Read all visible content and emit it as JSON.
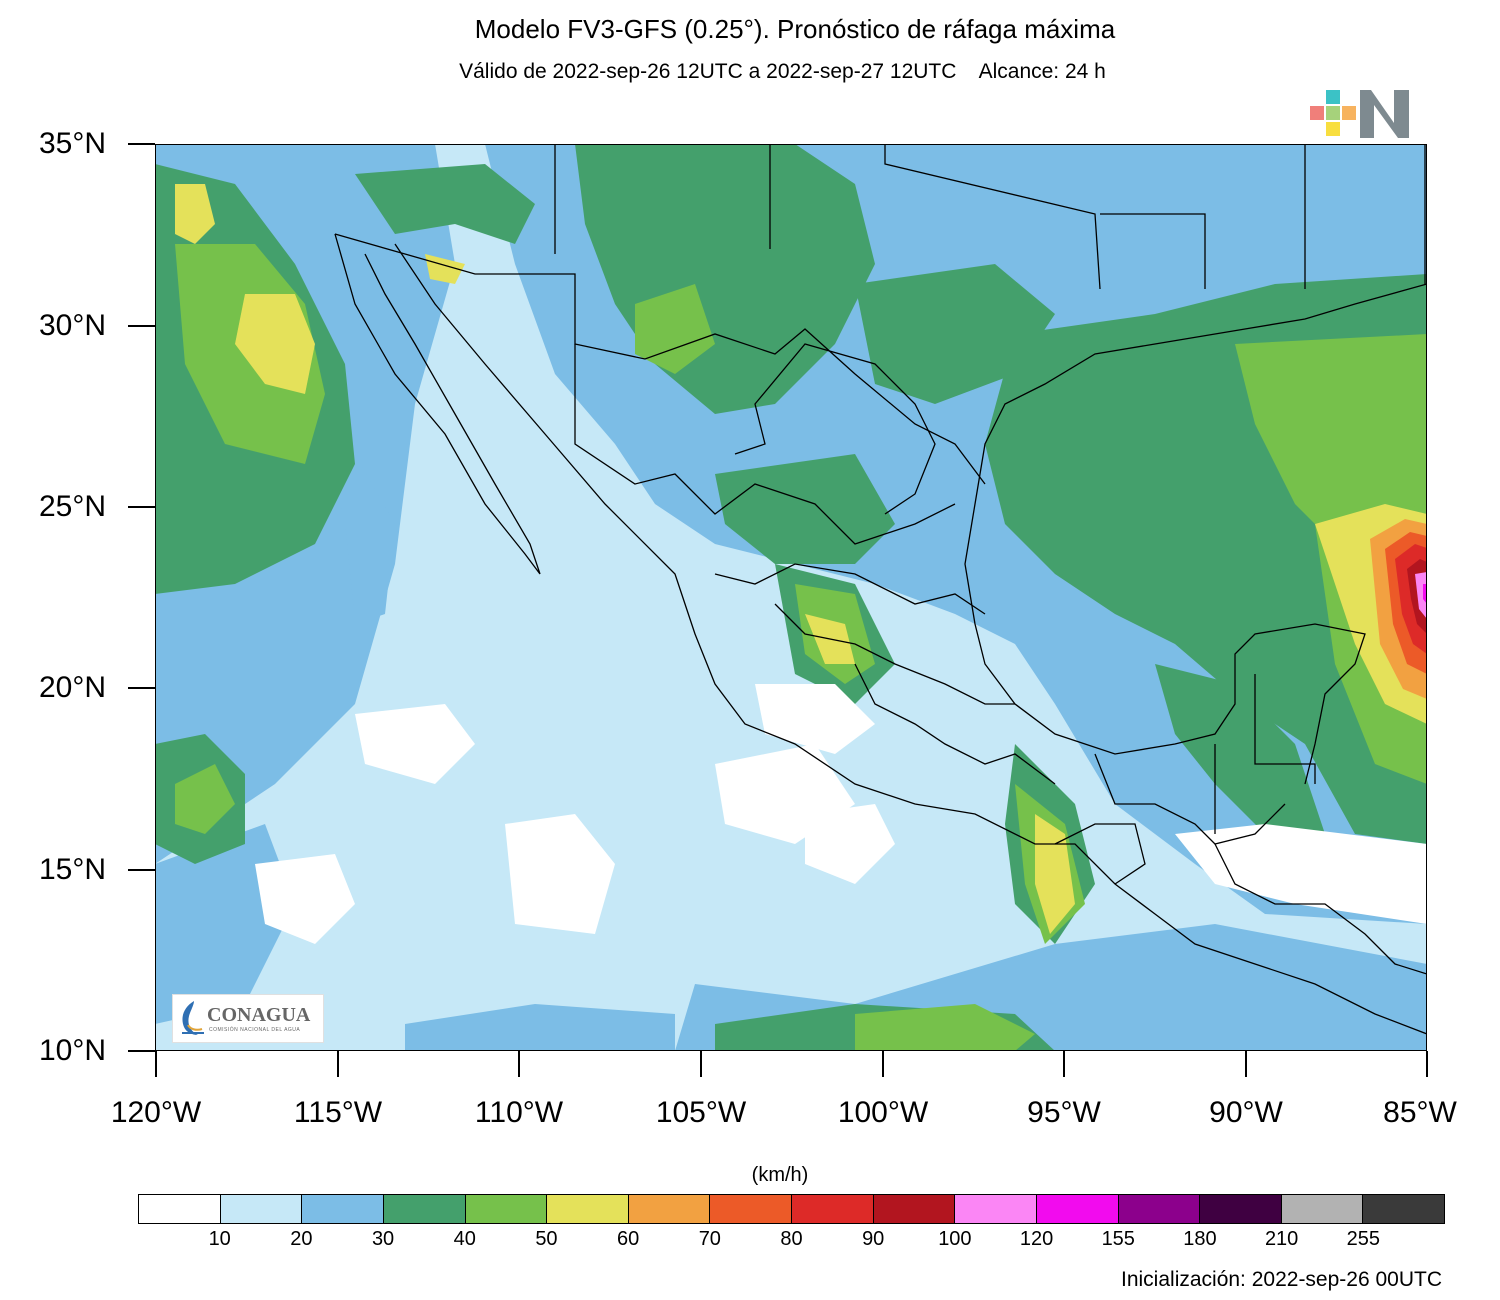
{
  "title": "Modelo FV3-GFS (0.25°). Pronóstico de ráfaga máxima",
  "subtitle": "Válido de 2022-sep-26 12UTC a 2022-sep-27 12UTC    Alcance: 24 h",
  "lat_labels": [
    "35°N",
    "30°N",
    "25°N",
    "20°N",
    "15°N",
    "10°N"
  ],
  "lon_labels": [
    "120°W",
    "115°W",
    "110°W",
    "105°W",
    "100°W",
    "95°W",
    "90°W",
    "85°W"
  ],
  "colorbar": {
    "unit": "(km/h)",
    "labels": [
      "10",
      "20",
      "30",
      "40",
      "50",
      "60",
      "70",
      "80",
      "90",
      "100",
      "120",
      "155",
      "180",
      "210",
      "255"
    ],
    "colors": [
      "#ffffff",
      "#c6e8f7",
      "#7cbde6",
      "#44a06c",
      "#76c14b",
      "#e4e15a",
      "#f2a141",
      "#ec5a28",
      "#dd2a28",
      "#b2151f",
      "#fb86f5",
      "#f20bee",
      "#8c008c",
      "#3f0041",
      "#b2b2b2",
      "#3a3a3a"
    ]
  },
  "initialization": "Inicialización: 2022-sep-26 00UTC",
  "logos": {
    "conagua": "CONAGUA",
    "conagua_sub": "COMISIÓN NACIONAL DEL AGUA",
    "brand": "N"
  }
}
